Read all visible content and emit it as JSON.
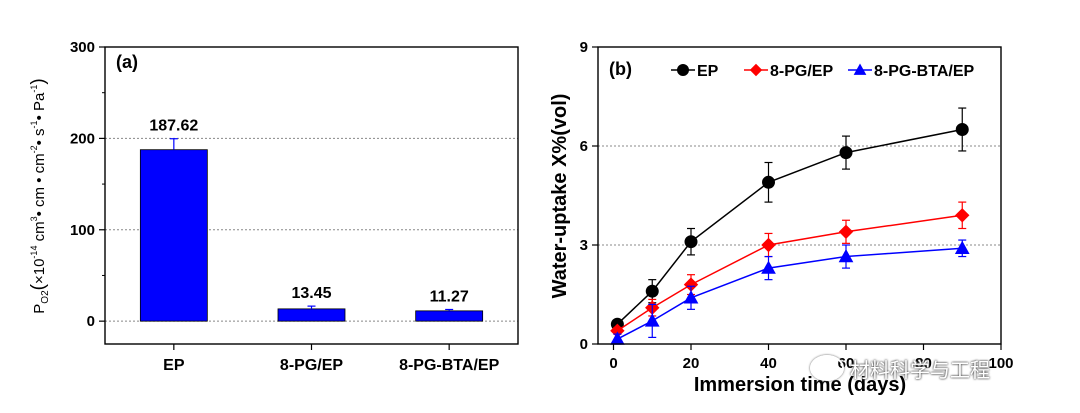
{
  "chart_data": [
    {
      "type": "bar",
      "panel_label": "(a)",
      "categories": [
        "EP",
        "8-PG/EP",
        "8-PG-BTA/EP"
      ],
      "values": [
        187.62,
        13.45,
        11.27
      ],
      "errors": [
        12,
        3,
        1.5
      ],
      "value_labels": [
        "187.62",
        "13.45",
        "11.27"
      ],
      "ylim": [
        -25,
        300
      ],
      "yticks": [
        0,
        100,
        200,
        300
      ],
      "ylabel": "P₀₂ (×10⁻¹⁴ cm³• cm• cm⁻²• s⁻¹• Pa⁻¹)",
      "ylabel_parts": {
        "p": "P",
        "p_sub": "O2",
        "open": "(",
        "times": "×10",
        "exp1": "-14",
        "cm1": " cm",
        "exp2": "3",
        "mid": "• cm • cm",
        "exp3": "-2",
        "s": "• s",
        "exp4": "-1",
        "pa": "• Pa",
        "exp5": "-1",
        "close": ")"
      },
      "bar_color": "#0000ff",
      "grid": "dashed horizontal at major ticks"
    },
    {
      "type": "line",
      "panel_label": "(b)",
      "xlabel": "Immersion time (days)",
      "ylabel": "Water-uptake X%(vol)",
      "xlim": [
        -4,
        100
      ],
      "ylim": [
        0,
        9
      ],
      "xticks": [
        0,
        20,
        40,
        60,
        80,
        100
      ],
      "yticks": [
        0,
        3,
        6,
        9
      ],
      "legend_position": "top-right",
      "series": [
        {
          "name": "EP",
          "color": "#000000",
          "marker": "circle",
          "x": [
            1,
            10,
            20,
            40,
            60,
            90
          ],
          "y": [
            0.6,
            1.6,
            3.1,
            4.9,
            5.8,
            6.5
          ],
          "err": [
            0.1,
            0.35,
            0.4,
            0.6,
            0.5,
            0.65
          ]
        },
        {
          "name": "8-PG/EP",
          "color": "#ff0000",
          "marker": "diamond",
          "x": [
            1,
            10,
            20,
            40,
            60,
            90
          ],
          "y": [
            0.4,
            1.1,
            1.8,
            3.0,
            3.4,
            3.9
          ],
          "err": [
            0.1,
            0.25,
            0.3,
            0.35,
            0.35,
            0.4
          ]
        },
        {
          "name": "8-PG-BTA/EP",
          "color": "#0000ff",
          "marker": "triangle",
          "x": [
            1,
            10,
            20,
            40,
            60,
            90
          ],
          "y": [
            0.15,
            0.7,
            1.4,
            2.3,
            2.65,
            2.9
          ],
          "err": [
            0.15,
            0.5,
            0.35,
            0.35,
            0.35,
            0.25
          ]
        }
      ],
      "grid": "dashed horizontal at 3 and 6"
    }
  ],
  "watermark": {
    "text": "材料科学与工程",
    "icon": "wechat-icon"
  }
}
